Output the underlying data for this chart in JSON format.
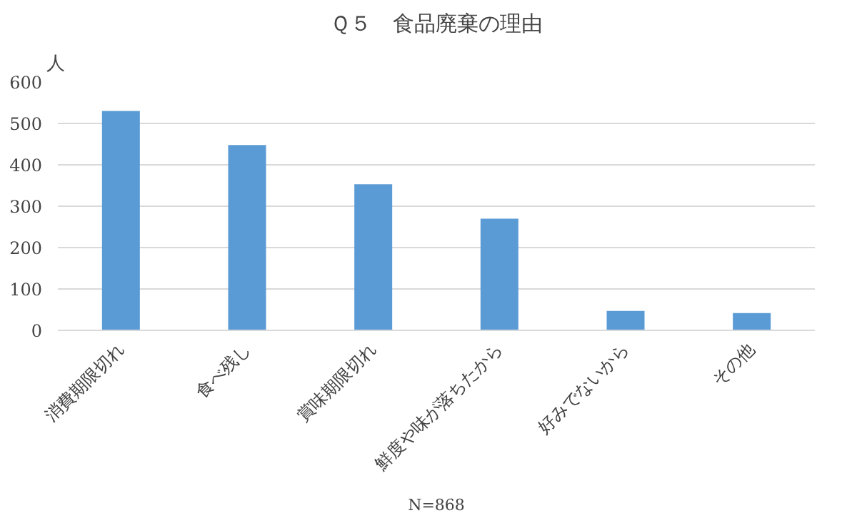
{
  "chart_data": {
    "type": "bar",
    "title": "Ｑ５　食品廃棄の理由",
    "ylabel": "人",
    "categories": [
      "消費期限切れ",
      "食べ残し",
      "賞味期限切れ",
      "鮮度や味が落ちたから",
      "好みでないから",
      "その他"
    ],
    "values": [
      530,
      448,
      353,
      270,
      47,
      42
    ],
    "color": "#5b9bd5",
    "ylim": [
      0,
      600
    ],
    "yticks": [
      0,
      100,
      200,
      300,
      400,
      500,
      600
    ],
    "grid": "y",
    "annotations": [
      "N=868"
    ]
  }
}
